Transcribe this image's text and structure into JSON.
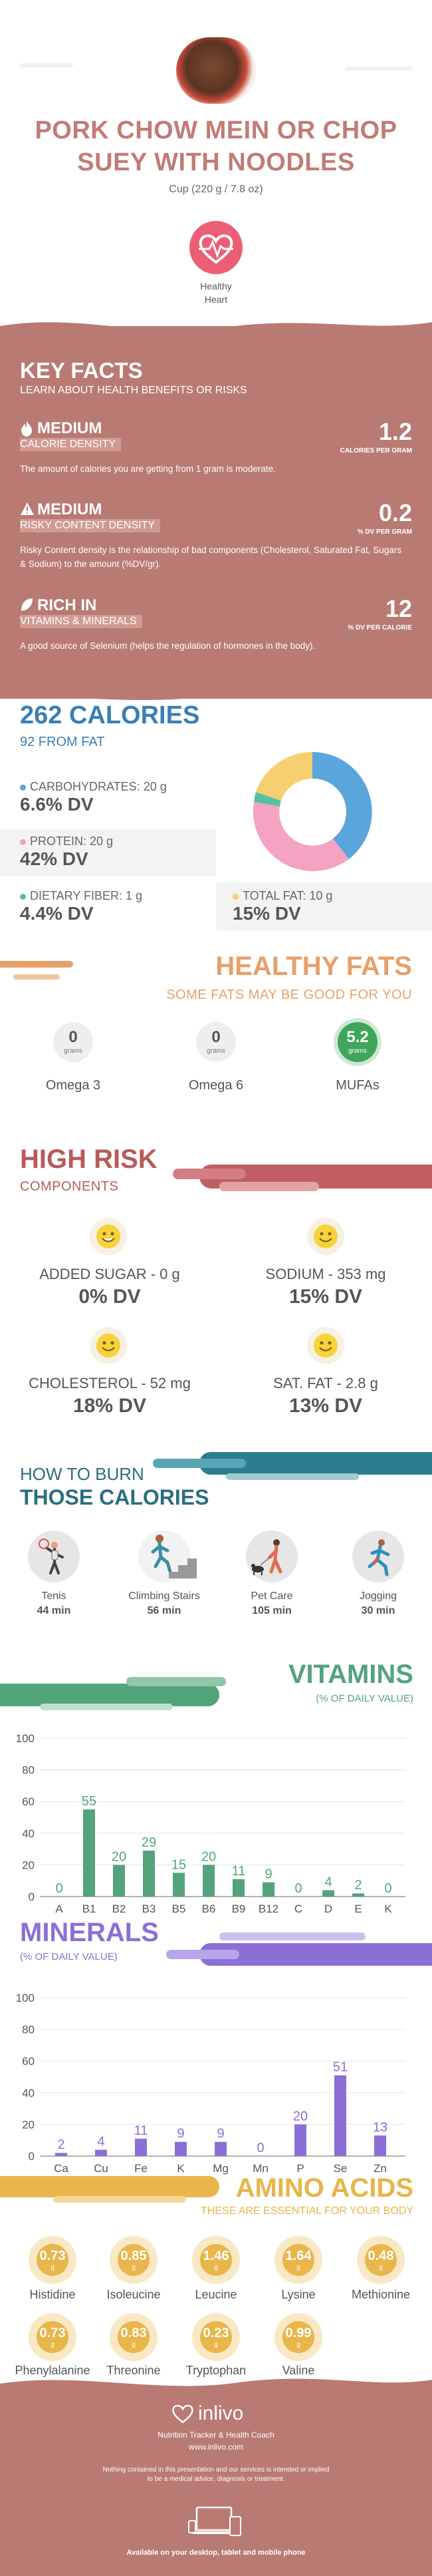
{
  "header": {
    "title_line1": "PORK CHOW MEIN OR CHOP",
    "title_line2": "SUEY WITH NOODLES",
    "serving": "Cup (220 g / 7.8 oz)",
    "badge_line1": "Healthy",
    "badge_line2": "Heart"
  },
  "key_facts": {
    "title": "KEY FACTS",
    "subtitle": "LEARN ABOUT HEALTH BENEFITS OR RISKS",
    "items": [
      {
        "level": "MEDIUM",
        "label": "CALORIE DENSITY",
        "desc": "The amount of calories you are getting from 1 gram is moderate.",
        "value": "1.2",
        "unit": "CALORIES PER GRAM"
      },
      {
        "level": "MEDIUM",
        "label": "RISKY CONTENT DENSITY",
        "desc": "Risky Content density is the relationship of bad components (Cholesterol, Saturated Fat, Sugars & Sodium) to the amount (%DV/gr).",
        "value": "0.2",
        "unit": "% DV PER GRAM"
      },
      {
        "level": "RICH IN",
        "label": "VITAMINS & MINERALS",
        "desc": "A good source of Selenium (helps the regulation of hormones in the body).",
        "value": "12",
        "unit": "% DV PER CALORIE"
      }
    ]
  },
  "calories": {
    "title": "262 CALORIES",
    "subtitle": "92 FROM FAT",
    "macros": [
      {
        "label": "CARBOHYDRATES: 20 g",
        "dv": "6.6% DV",
        "color": "#5aa5dc"
      },
      {
        "label": "PROTEIN: 20 g",
        "dv": "42% DV",
        "color": "#f4a3c3"
      },
      {
        "label": "DIETARY FIBER: 1 g",
        "dv": "4.4% DV",
        "color": "#58c0a2"
      },
      {
        "label": "TOTAL FAT: 10 g",
        "dv": "15% DV",
        "color": "#f6d070"
      }
    ]
  },
  "healthy_fats": {
    "title": "HEALTHY FATS",
    "subtitle": "SOME FATS MAY BE GOOD FOR YOU",
    "unit": "grams",
    "items": [
      {
        "value": "0",
        "name": "Omega 3"
      },
      {
        "value": "0",
        "name": "Omega 6"
      },
      {
        "value": "5.2",
        "name": "MUFAs"
      }
    ]
  },
  "high_risk": {
    "title": "HIGH RISK",
    "subtitle": "COMPONENTS",
    "items": [
      {
        "label": "ADDED SUGAR - 0 g",
        "dv": "0% DV"
      },
      {
        "label": "SODIUM - 353 mg",
        "dv": "15% DV"
      },
      {
        "label": "CHOLESTEROL - 52 mg",
        "dv": "18% DV"
      },
      {
        "label": "SAT. FAT - 2.8 g",
        "dv": "13% DV"
      }
    ]
  },
  "burn": {
    "title_line1": "HOW TO BURN",
    "title_line2": "THOSE CALORIES",
    "items": [
      {
        "name": "Tenis",
        "minutes": "44 min",
        "icon": "tennis-player-icon"
      },
      {
        "name": "Climbing Stairs",
        "minutes": "56 min",
        "icon": "stairs-climber-icon"
      },
      {
        "name": "Pet Care",
        "minutes": "105 min",
        "icon": "dog-walker-icon"
      },
      {
        "name": "Jogging",
        "minutes": "30 min",
        "icon": "jogger-icon"
      }
    ]
  },
  "vitamins": {
    "title": "VITAMINS",
    "subtitle": "(% OF DAILY VALUE)"
  },
  "minerals": {
    "title": "MINERALS",
    "subtitle": "(% OF DAILY VALUE)"
  },
  "chart_data": [
    {
      "type": "bar",
      "categories": [
        "A",
        "B1",
        "B2",
        "B3",
        "B5",
        "B6",
        "B9",
        "B12",
        "C",
        "D",
        "E",
        "K"
      ],
      "values": [
        0,
        55,
        20,
        29,
        15,
        20,
        11,
        9,
        0,
        4,
        2,
        0
      ],
      "title": "VITAMINS",
      "ylabel": "(% OF DAILY VALUE)",
      "ylim": [
        0,
        100
      ],
      "yticks": [
        0,
        20,
        40,
        60,
        80,
        100
      ],
      "color": "#53a37c"
    },
    {
      "type": "bar",
      "categories": [
        "Ca",
        "Cu",
        "Fe",
        "K",
        "Mg",
        "Mn",
        "P",
        "Se",
        "Zn"
      ],
      "values": [
        2,
        4,
        11,
        9,
        9,
        0,
        20,
        51,
        13
      ],
      "title": "MINERALS",
      "ylabel": "(% OF DAILY VALUE)",
      "ylim": [
        0,
        100
      ],
      "yticks": [
        0,
        20,
        40,
        60,
        80,
        100
      ],
      "color": "#8b6fd6"
    }
  ],
  "amino": {
    "title": "AMINO ACIDS",
    "subtitle": "THESE ARE ESSENTIAL FOR YOUR BODY",
    "unit": "g",
    "items": [
      {
        "value": "0.73",
        "name": "Histidine"
      },
      {
        "value": "0.85",
        "name": "Isoleucine"
      },
      {
        "value": "1.46",
        "name": "Leucine"
      },
      {
        "value": "1.64",
        "name": "Lysine"
      },
      {
        "value": "0.48",
        "name": "Methionine"
      },
      {
        "value": "0.73",
        "name": "Phenylalanine"
      },
      {
        "value": "0.83",
        "name": "Threonine"
      },
      {
        "value": "0.23",
        "name": "Tryptophan"
      },
      {
        "value": "0.99",
        "name": "Valine"
      }
    ]
  },
  "footer": {
    "brand": "inlivo",
    "tagline": "Nutrition Tracker & Health Coach",
    "url": "www.inlivo.com",
    "disclaimer_line1": "Nothing contained in this presentation and our services is intended or implied",
    "disclaimer_line2": "to be a medical advice, diagnosis or treatment.",
    "available": "Available on your desktop, tablet and mobile phone"
  }
}
